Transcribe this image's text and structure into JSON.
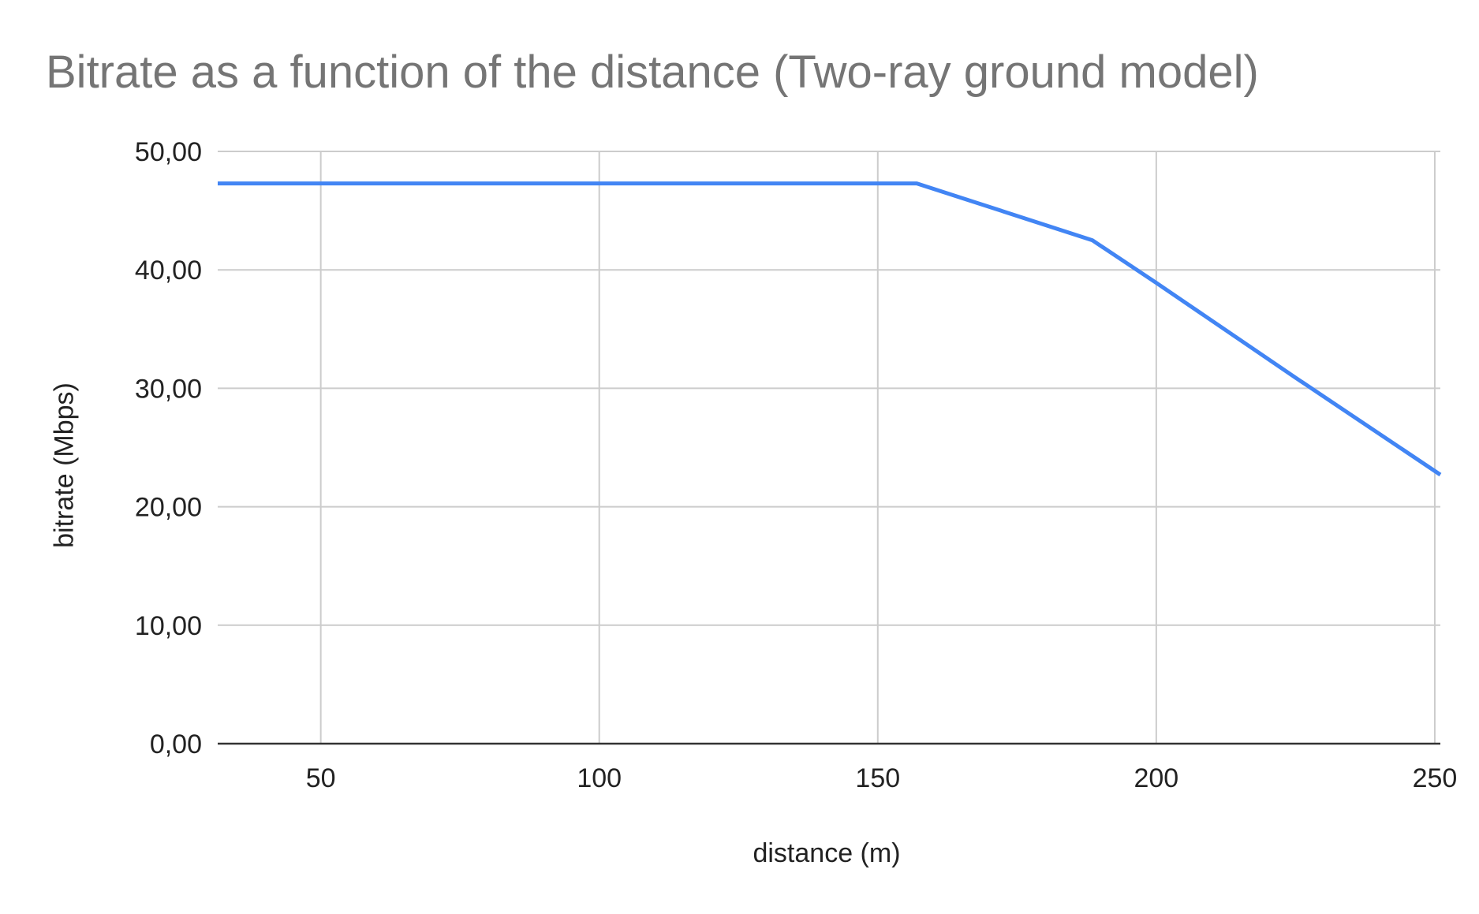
{
  "chart_data": {
    "type": "line",
    "title": "Bitrate as a function of the distance (Two-ray ground model)",
    "xlabel": "distance (m)",
    "ylabel": "bitrate (Mbps)",
    "xlim": [
      31.5,
      251
    ],
    "ylim": [
      0,
      50
    ],
    "xticks": [
      50,
      100,
      150,
      200,
      250
    ],
    "xtick_labels": [
      "50",
      "100",
      "150",
      "200",
      "250"
    ],
    "yticks": [
      0,
      10,
      20,
      30,
      40,
      50
    ],
    "ytick_labels": [
      "0,00",
      "10,00",
      "20,00",
      "30,00",
      "40,00",
      "50,00"
    ],
    "grid": true,
    "legend": "none",
    "series": [
      {
        "color": "#4285f4",
        "x": [
          31.5,
          50,
          100,
          150,
          157,
          188.5,
          200,
          225,
          251
        ],
        "y": [
          47.3,
          47.3,
          47.3,
          47.3,
          47.3,
          42.5,
          38.9,
          30.9,
          22.7
        ]
      }
    ],
    "colors": {
      "grid": "#cccccc",
      "axis": "#333333",
      "title": "#757575",
      "text": "#222222"
    }
  }
}
